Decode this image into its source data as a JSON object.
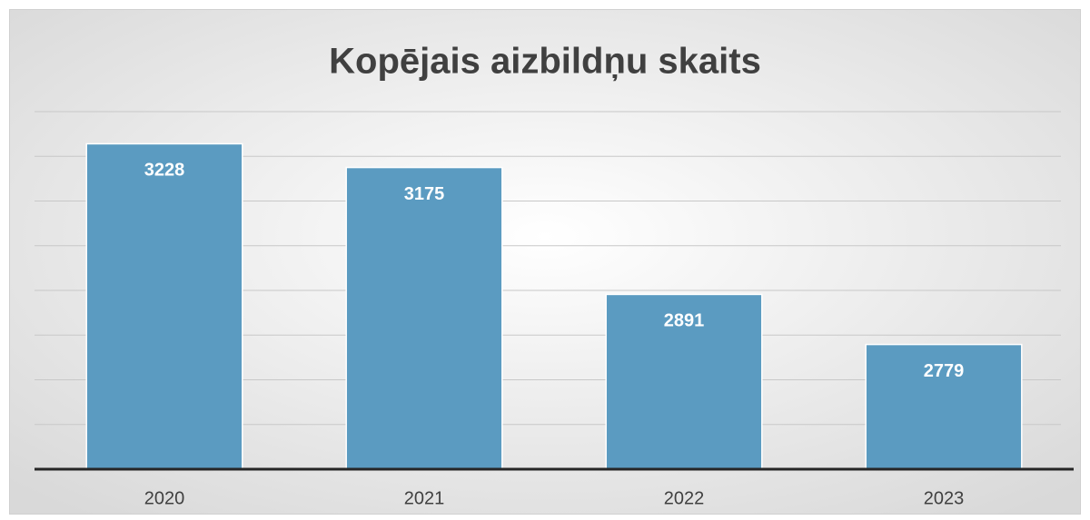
{
  "chart_data": {
    "type": "bar",
    "title": "Kopējais aizbildņu skaits",
    "categories": [
      "2020",
      "2021",
      "2022",
      "2023"
    ],
    "values": [
      3228,
      3175,
      2891,
      2779
    ],
    "color": "#5b9bc1",
    "ylim": [
      2500,
      3300
    ],
    "yticks": [
      2500,
      2600,
      2700,
      2800,
      2900,
      3000,
      3100,
      3200,
      3300
    ],
    "grid": true
  }
}
